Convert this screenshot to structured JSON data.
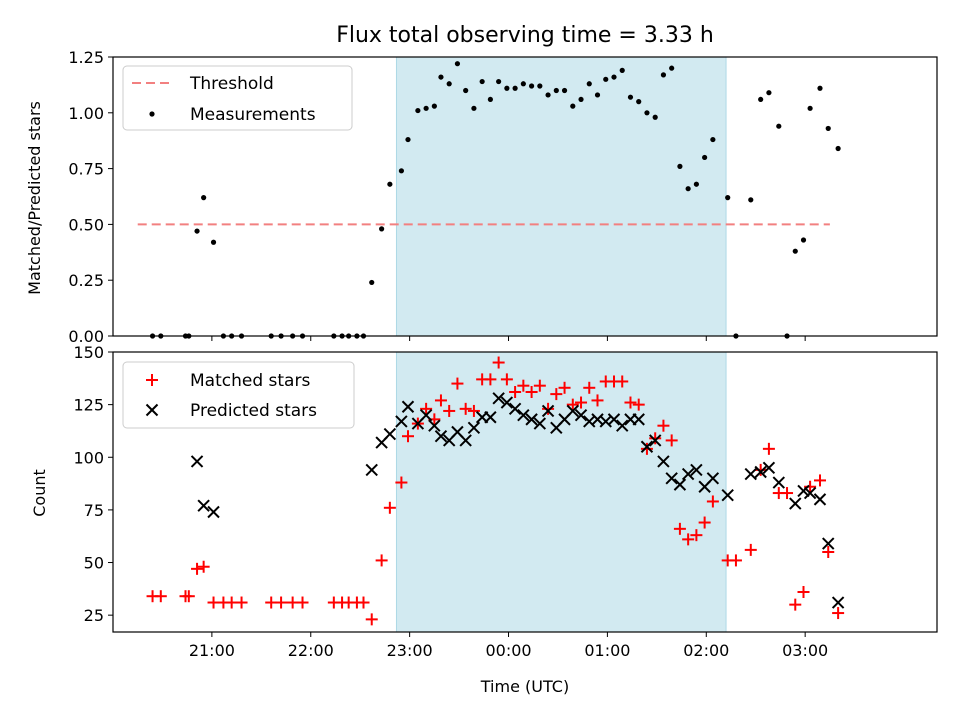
{
  "title": "Flux total observing time = 3.33 h",
  "colors": {
    "threshold": "#f28080",
    "measurement": "#000000",
    "matched": "#ff0000",
    "predicted": "#000000",
    "span": "#add8e6"
  },
  "chart_data": [
    {
      "type": "scatter",
      "ylabel": "Matched/Predicted stars",
      "xlabel": "",
      "ylim": [
        0,
        1.25
      ],
      "yticks": [
        "0.00",
        "0.25",
        "0.50",
        "0.75",
        "1.00",
        "1.25"
      ],
      "grid": false,
      "legend_position": "top-left",
      "shaded_span": [
        "22:52",
        "02:12"
      ],
      "series": [
        {
          "name": "Threshold",
          "kind": "dashed-line",
          "x": [
            "20:15",
            "03:15"
          ],
          "y": [
            0.5,
            0.5
          ]
        },
        {
          "name": "Measurements",
          "kind": "dots",
          "x": [
            "20:24",
            "20:29",
            "20:44",
            "20:46",
            "20:51",
            "20:55",
            "21:01",
            "21:07",
            "21:12",
            "21:18",
            "21:36",
            "21:42",
            "21:49",
            "21:55",
            "22:14",
            "22:19",
            "22:23",
            "22:28",
            "22:32",
            "22:37",
            "22:43",
            "22:48",
            "22:55",
            "22:59",
            "23:05",
            "23:10",
            "23:15",
            "23:19",
            "23:24",
            "23:29",
            "23:34",
            "23:39",
            "23:44",
            "23:49",
            "23:54",
            "23:59",
            "00:04",
            "00:09",
            "00:14",
            "00:19",
            "00:24",
            "00:29",
            "00:34",
            "00:39",
            "00:44",
            "00:49",
            "00:54",
            "00:59",
            "01:04",
            "01:09",
            "01:14",
            "01:19",
            "01:24",
            "01:29",
            "01:34",
            "01:39",
            "01:44",
            "01:49",
            "01:54",
            "01:59",
            "02:04",
            "02:13",
            "02:18",
            "02:27",
            "02:33",
            "02:38",
            "02:44",
            "02:49",
            "02:54",
            "02:59",
            "03:03",
            "03:09",
            "03:14",
            "03:20"
          ],
          "y": [
            0.0,
            0.0,
            0.0,
            0.0,
            0.47,
            0.62,
            0.42,
            0.0,
            0.0,
            0.0,
            0.0,
            0.0,
            0.0,
            0.0,
            0.0,
            0.0,
            0.0,
            0.0,
            0.0,
            0.24,
            0.48,
            0.68,
            0.74,
            0.88,
            1.01,
            1.02,
            1.03,
            1.16,
            1.13,
            1.22,
            1.1,
            1.02,
            1.14,
            1.06,
            1.14,
            1.11,
            1.11,
            1.13,
            1.12,
            1.12,
            1.08,
            1.1,
            1.1,
            1.03,
            1.06,
            1.13,
            1.08,
            1.15,
            1.16,
            1.19,
            1.07,
            1.05,
            1.0,
            0.98,
            1.17,
            1.2,
            0.76,
            0.66,
            0.68,
            0.8,
            0.88,
            0.62,
            0.0,
            0.61,
            1.06,
            1.09,
            0.94,
            0.0,
            0.38,
            0.43,
            1.02,
            1.11,
            0.93,
            0.84
          ]
        }
      ]
    },
    {
      "type": "scatter",
      "ylabel": "Count",
      "xlabel": "Time (UTC)",
      "ylim": [
        17,
        150
      ],
      "yticks": [
        "25",
        "50",
        "75",
        "100",
        "125",
        "150"
      ],
      "xticks": [
        "21:00",
        "22:00",
        "23:00",
        "00:00",
        "01:00",
        "02:00",
        "03:00"
      ],
      "grid": false,
      "legend_position": "top-left",
      "shaded_span": [
        "22:52",
        "02:12"
      ],
      "series": [
        {
          "name": "Matched stars",
          "marker": "plus",
          "x": [
            "20:24",
            "20:29",
            "20:44",
            "20:46",
            "20:51",
            "20:55",
            "21:01",
            "21:07",
            "21:12",
            "21:18",
            "21:36",
            "21:42",
            "21:49",
            "21:55",
            "22:14",
            "22:19",
            "22:23",
            "22:28",
            "22:32",
            "22:37",
            "22:43",
            "22:48",
            "22:55",
            "22:59",
            "23:05",
            "23:10",
            "23:15",
            "23:19",
            "23:24",
            "23:29",
            "23:34",
            "23:39",
            "23:44",
            "23:49",
            "23:54",
            "23:59",
            "00:04",
            "00:09",
            "00:14",
            "00:19",
            "00:24",
            "00:29",
            "00:34",
            "00:39",
            "00:44",
            "00:49",
            "00:54",
            "00:59",
            "01:04",
            "01:09",
            "01:14",
            "01:19",
            "01:24",
            "01:29",
            "01:34",
            "01:39",
            "01:44",
            "01:49",
            "01:54",
            "01:59",
            "02:04",
            "02:13",
            "02:18",
            "02:27",
            "02:33",
            "02:38",
            "02:44",
            "02:49",
            "02:54",
            "02:59",
            "03:03",
            "03:09",
            "03:14",
            "03:20"
          ],
          "y": [
            34,
            34,
            34,
            34,
            47,
            48,
            31,
            31,
            31,
            31,
            31,
            31,
            31,
            31,
            31,
            31,
            31,
            31,
            31,
            23,
            51,
            76,
            88,
            110,
            116,
            123,
            118,
            127,
            122,
            135,
            123,
            122,
            137,
            137,
            145,
            137,
            131,
            134,
            131,
            134,
            123,
            130,
            133,
            125,
            126,
            133,
            127,
            136,
            136,
            136,
            126,
            125,
            104,
            109,
            115,
            108,
            66,
            61,
            63,
            69,
            79,
            51,
            51,
            56,
            94,
            104,
            83,
            83,
            30,
            36,
            86,
            89,
            55,
            26
          ]
        },
        {
          "name": "Predicted stars",
          "marker": "x",
          "x": [
            "20:51",
            "20:55",
            "21:01",
            "22:37",
            "22:43",
            "22:48",
            "22:55",
            "22:59",
            "23:05",
            "23:10",
            "23:15",
            "23:19",
            "23:24",
            "23:29",
            "23:34",
            "23:39",
            "23:44",
            "23:49",
            "23:54",
            "23:59",
            "00:04",
            "00:09",
            "00:14",
            "00:19",
            "00:24",
            "00:29",
            "00:34",
            "00:39",
            "00:44",
            "00:49",
            "00:54",
            "00:59",
            "01:04",
            "01:09",
            "01:14",
            "01:19",
            "01:24",
            "01:29",
            "01:34",
            "01:39",
            "01:44",
            "01:49",
            "01:54",
            "01:59",
            "02:04",
            "02:13",
            "02:27",
            "02:33",
            "02:38",
            "02:44",
            "02:54",
            "02:59",
            "03:03",
            "03:09",
            "03:14",
            "03:20"
          ],
          "y": [
            98,
            77,
            74,
            94,
            107,
            111,
            117,
            124,
            116,
            120,
            115,
            110,
            108,
            112,
            108,
            114,
            119,
            119,
            128,
            126,
            123,
            120,
            118,
            116,
            122,
            114,
            118,
            122,
            120,
            117,
            118,
            117,
            118,
            115,
            118,
            118,
            105,
            108,
            98,
            90,
            87,
            92,
            94,
            86,
            90,
            82,
            92,
            93,
            95,
            88,
            78,
            84,
            83,
            80,
            59,
            31
          ]
        }
      ]
    }
  ]
}
